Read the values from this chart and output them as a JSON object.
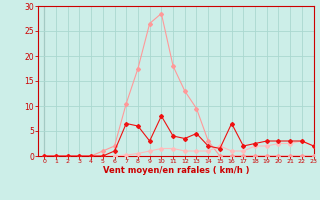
{
  "bg_color": "#cceee8",
  "grid_color": "#aad8d0",
  "line1_x": [
    0,
    1,
    2,
    3,
    4,
    5,
    6,
    7,
    8,
    9,
    10,
    11,
    12,
    13,
    14,
    15,
    16,
    17,
    18,
    19,
    20,
    21,
    22,
    23
  ],
  "line1_y": [
    0,
    0,
    0,
    0,
    0,
    1,
    2,
    10.5,
    17.5,
    26.5,
    28.5,
    18,
    13,
    9.5,
    3,
    0,
    0,
    0,
    0,
    0,
    0,
    0,
    0,
    0
  ],
  "line1_color": "#ff9999",
  "line2_x": [
    0,
    1,
    2,
    3,
    4,
    5,
    6,
    7,
    8,
    9,
    10,
    11,
    12,
    13,
    14,
    15,
    16,
    17,
    18,
    19,
    20,
    21,
    22,
    23
  ],
  "line2_y": [
    0,
    0,
    0,
    0,
    0,
    0,
    1,
    6.5,
    6,
    3,
    8,
    4,
    3.5,
    4.5,
    2,
    1.5,
    6.5,
    2,
    2.5,
    3,
    3,
    3,
    3,
    2
  ],
  "line2_color": "#ee1111",
  "line3_x": [
    0,
    1,
    2,
    3,
    4,
    5,
    6,
    7,
    8,
    9,
    10,
    11,
    12,
    13,
    14,
    15,
    16,
    17,
    18,
    19,
    20,
    21,
    22,
    23
  ],
  "line3_y": [
    0,
    0,
    0,
    0,
    0,
    0,
    0,
    0.2,
    0.5,
    1,
    1.5,
    1.5,
    1,
    1,
    1,
    2,
    1,
    1,
    2,
    2,
    2.5,
    2.5,
    3,
    2
  ],
  "line3_color": "#ffbbbb",
  "line4_x": [
    0,
    1,
    2,
    3,
    4,
    5,
    6,
    7,
    8,
    9,
    10,
    11,
    12,
    13,
    14,
    15,
    16,
    17,
    18,
    19,
    20,
    21,
    22,
    23
  ],
  "line4_y": [
    0,
    0,
    0,
    0,
    0,
    0,
    0,
    0,
    0,
    0,
    0,
    0,
    0,
    0,
    0,
    0,
    0,
    0,
    0,
    0,
    0,
    0,
    0,
    0
  ],
  "line4_color": "#cc0000",
  "xlabel": "Vent moyen/en rafales ( km/h )",
  "xlim": [
    -0.5,
    23
  ],
  "ylim": [
    0,
    30
  ],
  "yticks": [
    0,
    5,
    10,
    15,
    20,
    25,
    30
  ],
  "xticks": [
    0,
    1,
    2,
    3,
    4,
    5,
    6,
    7,
    8,
    9,
    10,
    11,
    12,
    13,
    14,
    15,
    16,
    17,
    18,
    19,
    20,
    21,
    22,
    23
  ],
  "marker": "D",
  "marker_size": 2,
  "linewidth": 0.8,
  "axis_color": "#cc0000",
  "tick_color": "#cc0000",
  "label_color": "#cc0000"
}
